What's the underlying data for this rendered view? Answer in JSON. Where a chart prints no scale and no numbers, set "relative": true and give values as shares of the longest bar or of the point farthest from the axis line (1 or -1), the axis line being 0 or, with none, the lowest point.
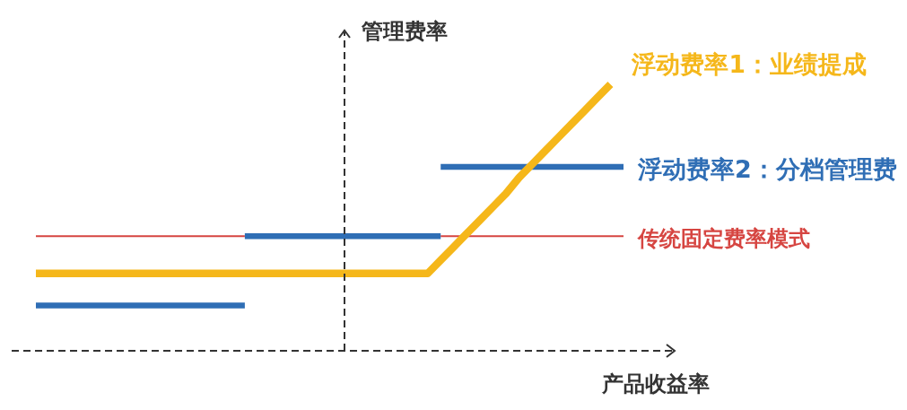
{
  "chart_data": {
    "type": "line",
    "relative": true,
    "xlabel": "产品收益率",
    "ylabel": "管理费率",
    "categories": [
      null,
      null,
      null,
      null,
      null,
      null,
      null,
      null,
      null,
      null,
      null,
      null,
      null,
      null,
      null,
      null,
      null,
      null,
      null,
      null,
      null,
      null,
      null,
      null,
      null,
      null,
      null,
      null,
      null,
      null,
      null,
      null,
      null,
      null,
      null,
      null,
      null,
      null,
      null,
      null,
      null,
      null,
      null,
      null,
      null,
      null
    ],
    "series": [
      {
        "name": "传统固定费率模式",
        "color": "#d64541",
        "values": [
          0.43,
          0.43,
          0.43,
          0.43,
          0.43,
          0.43,
          0.43,
          0.43,
          0.43,
          0.43,
          0.43,
          0.43,
          0.43,
          0.43,
          0.43,
          0.43,
          0.43,
          null,
          null,
          null,
          null,
          null,
          null,
          null,
          null,
          null,
          null,
          null,
          null,
          null,
          null,
          0.43,
          0.43,
          0.43,
          0.43,
          0.43,
          0.43,
          0.43,
          0.43,
          0.43,
          0.43,
          0.43,
          0.43,
          0.43,
          0.43,
          0.43
        ]
      },
      {
        "color": "#2f6eb5",
        "values": [
          0.17,
          0.17,
          0.17,
          0.17,
          0.17,
          0.17,
          0.17,
          0.17,
          0.17,
          0.17,
          0.17,
          0.17,
          0.17,
          0.17,
          0.17,
          0.17,
          0.17,
          null,
          null,
          null,
          null,
          null,
          null,
          null,
          null,
          null,
          null,
          null,
          null,
          null,
          null,
          null,
          null,
          null,
          null,
          null,
          null,
          null,
          null,
          null,
          null,
          null,
          null,
          null,
          null,
          null
        ]
      },
      {
        "color": "#2f6eb5",
        "values": [
          null,
          null,
          null,
          null,
          null,
          null,
          null,
          null,
          null,
          null,
          null,
          null,
          null,
          null,
          null,
          null,
          0.43,
          0.43,
          0.43,
          0.43,
          0.43,
          0.43,
          0.43,
          0.43,
          0.43,
          0.43,
          0.43,
          0.43,
          0.43,
          0.43,
          0.43,
          0.43,
          null,
          null,
          null,
          null,
          null,
          null,
          null,
          null,
          null,
          null,
          null,
          null,
          null,
          null
        ]
      },
      {
        "name": "浮动费率2：分档管理费",
        "color": "#2f6eb5",
        "values": [
          null,
          null,
          null,
          null,
          null,
          null,
          null,
          null,
          null,
          null,
          null,
          null,
          null,
          null,
          null,
          null,
          null,
          null,
          null,
          null,
          null,
          null,
          null,
          null,
          null,
          null,
          null,
          null,
          null,
          null,
          null,
          0.69,
          0.69,
          0.69,
          0.69,
          0.69,
          0.69,
          0.69,
          0.69,
          0.69,
          0.69,
          0.69,
          0.69,
          0.69,
          0.69,
          0.69
        ]
      },
      {
        "name": "浮动费率1：业绩提成",
        "color": "#f5b71a",
        "values": [
          0.29,
          0.29,
          0.29,
          0.29,
          0.29,
          0.29,
          0.29,
          0.29,
          0.29,
          0.29,
          0.29,
          0.29,
          0.29,
          0.29,
          0.29,
          0.29,
          0.29,
          0.29,
          0.29,
          0.29,
          0.29,
          0.29,
          0.29,
          0.29,
          0.29,
          0.29,
          0.29,
          0.29,
          0.29,
          0.29,
          0.29,
          0.34,
          0.39,
          0.44,
          0.49,
          0.54,
          0.59,
          0.65,
          0.7,
          0.75,
          0.8,
          0.85,
          0.9,
          0.95,
          1,
          null
        ]
      }
    ]
  }
}
